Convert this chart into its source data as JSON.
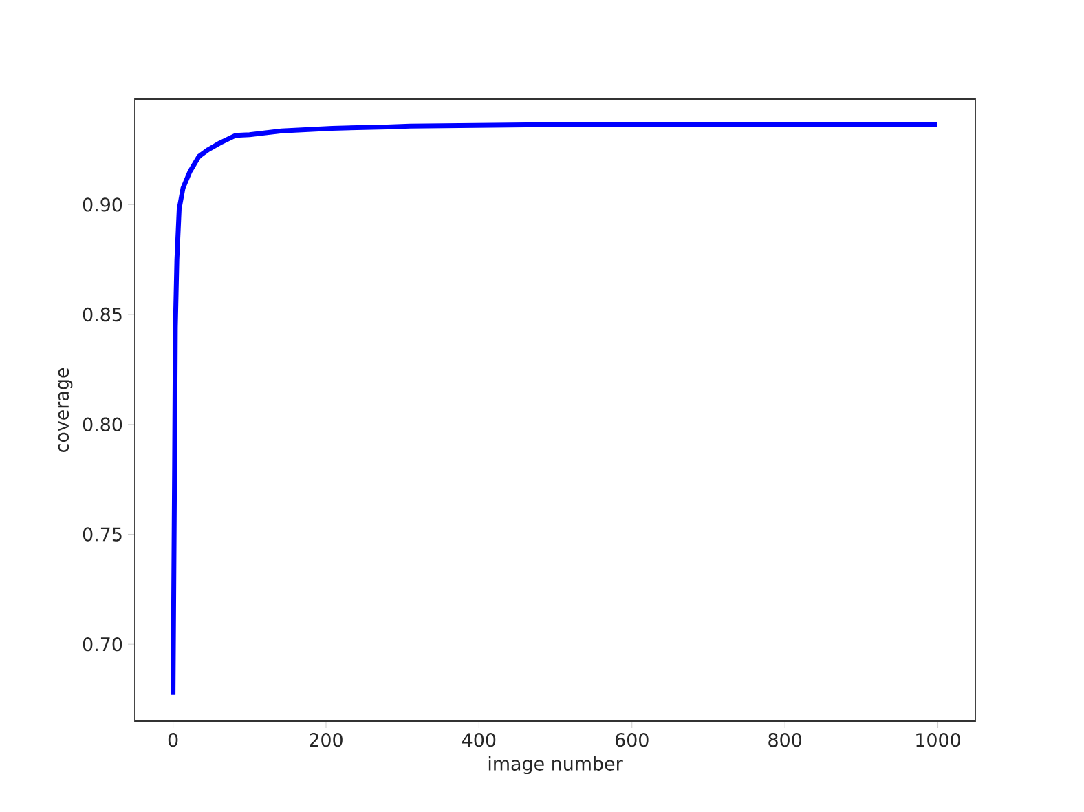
{
  "chart_data": {
    "type": "line",
    "xlabel": "image number",
    "ylabel": "coverage",
    "x": [
      0,
      2,
      3,
      5,
      8,
      13,
      22,
      34,
      46,
      61,
      82,
      100,
      142,
      208,
      280,
      310,
      499,
      999
    ],
    "series": [
      {
        "color": "#0000ff",
        "values": [
          0.677,
          0.781,
          0.844,
          0.875,
          0.898,
          0.9075,
          0.915,
          0.922,
          0.925,
          0.928,
          0.9315,
          0.9318,
          0.9335,
          0.9347,
          0.9353,
          0.9357,
          0.9364,
          0.9364
        ]
      }
    ],
    "xlim": [
      -50,
      1049
    ],
    "ylim": [
      0.665,
      0.948
    ],
    "xticks": [
      0,
      200,
      400,
      600,
      800,
      1000
    ],
    "yticks": [
      {
        "value": 0.7,
        "label": "0.70"
      },
      {
        "value": 0.75,
        "label": "0.75"
      },
      {
        "value": 0.8,
        "label": "0.80"
      },
      {
        "value": 0.85,
        "label": "0.85"
      },
      {
        "value": 0.9,
        "label": "0.90"
      }
    ],
    "grid": false
  }
}
